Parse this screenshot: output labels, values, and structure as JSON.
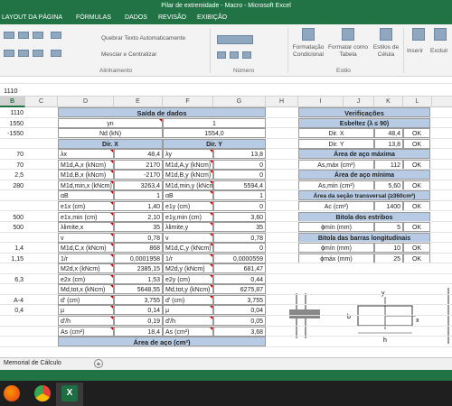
{
  "window": {
    "title": "Pilar de extremidade - Macro - Microsoft Excel"
  },
  "ribbon_tabs": [
    "LAYOUT DA PÁGINA",
    "FÓRMULAS",
    "DADOS",
    "REVISÃO",
    "EXIBIÇÃO"
  ],
  "ribbon": {
    "wrap_text": "Quebrar Texto Automaticamente",
    "merge_center": "Mesclar e Centralizar",
    "group_alignment": "Alinhamento",
    "group_number": "Número",
    "group_style": "Estilo",
    "conditional_1": "Formatação",
    "conditional_2": "Condicional",
    "as_table_1": "Formatar como",
    "as_table_2": "Tabela",
    "cell_styles_1": "Estilos de",
    "cell_styles_2": "Célula",
    "insert": "Inserir",
    "delete": "Excluir"
  },
  "formula_bar": {
    "value": "1110"
  },
  "columns": [
    "B",
    "C",
    "D",
    "E",
    "F",
    "G",
    "H",
    "I",
    "J",
    "K",
    "L"
  ],
  "col_b_values": [
    "1110",
    "1550",
    "-1550",
    "",
    "70",
    "70",
    "2,5",
    "280",
    "",
    "",
    "500",
    "500",
    "",
    "1,4",
    "1,15",
    "",
    "6,3",
    "",
    "A-4",
    "0,4"
  ],
  "saida": {
    "title": "Saída de dados",
    "gamma_label": "γn",
    "gamma_value": "1",
    "nd_label": "Nd (kN)",
    "nd_value": "1554,0",
    "dir_x": "Dir. X",
    "dir_y": "Dir. Y",
    "rows": [
      [
        "λx",
        "48,4",
        "λy",
        "13,8"
      ],
      [
        "M1d,A,x (kNcm)",
        "2170",
        "M1d,A,y (kNcm)",
        "0"
      ],
      [
        "M1d,B,x (kNcm)",
        "-2170",
        "M1d,B,y (kNcm)",
        "0"
      ],
      [
        "M1d,min,x (kNcm)",
        "3263,4",
        "M1d,min,y (kNcm)",
        "5594,4"
      ],
      [
        "αB",
        "1",
        "αB",
        "1"
      ],
      [
        "e1x (cm)",
        "1,40",
        "e1y (cm)",
        "0"
      ],
      [
        "e1x,min (cm)",
        "2,10",
        "e1y,min (cm)",
        "3,60"
      ],
      [
        "λlimite,x",
        "35",
        "λlimite,y",
        "35"
      ],
      [
        "v",
        "0,78",
        "v",
        "0,78"
      ],
      [
        "M1d,C,x (kNcm)",
        "868",
        "M1d,C,y (kNcm)",
        "0"
      ],
      [
        "1/r",
        "0,0001958",
        "1/r",
        "0,0000559"
      ],
      [
        "M2d,x (kNcm)",
        "2385,15",
        "M2d,y (kNcm)",
        "681,47"
      ],
      [
        "e2x (cm)",
        "1,53",
        "e2y (cm)",
        "0,44"
      ],
      [
        "Md,tot,x (kNcm)",
        "5648,55",
        "Md,tot,y (kNcm)",
        "6275,87"
      ],
      [
        "d' (cm)",
        "3,755",
        "d' (cm)",
        "3,755"
      ],
      [
        "μ",
        "0,14",
        "μ",
        "0,04"
      ],
      [
        "d'/h",
        "0,19",
        "d'/h",
        "0,05"
      ],
      [
        "As (cm²)",
        "18,4",
        "As (cm²)",
        "3,68"
      ]
    ],
    "area_aco": "Área de aço (cm²)"
  },
  "verif": {
    "title": "Verificações",
    "esbeltez": "Esbeltez (λ ≤ 90)",
    "esb_rows": [
      [
        "Dir. X",
        "48,4",
        "OK"
      ],
      [
        "Dir. Y",
        "13,8",
        "OK"
      ]
    ],
    "area_max": "Área de aço máxima",
    "max_row": [
      "As,máx (cm²)",
      "112",
      "OK"
    ],
    "area_min": "Área de aço mínima",
    "min_row": [
      "As,mín (cm²)",
      "5,60",
      "OK"
    ],
    "secao": "Área da seção transversal (≥360cm²)",
    "secao_row": [
      "Ac (cm²)",
      "1400",
      "OK"
    ],
    "estribos": "Bitola dos estribos",
    "estribos_row": [
      "ϕmín (mm)",
      "5",
      "OK"
    ],
    "longit": "Bitola das barras longitudinais",
    "longit_rows": [
      [
        "ϕmín (mm)",
        "10",
        "OK"
      ],
      [
        "ϕmáx (mm)",
        "25",
        "OK"
      ]
    ]
  },
  "diagram": {
    "label_y": "y",
    "label_x": "x",
    "label_b": "b",
    "label_h": "h"
  },
  "sheet_tab": "Memorial de Cálculo",
  "colors": {
    "excel_green": "#217346",
    "header_blue": "#b7cce4",
    "mark_red": "#c00000"
  }
}
